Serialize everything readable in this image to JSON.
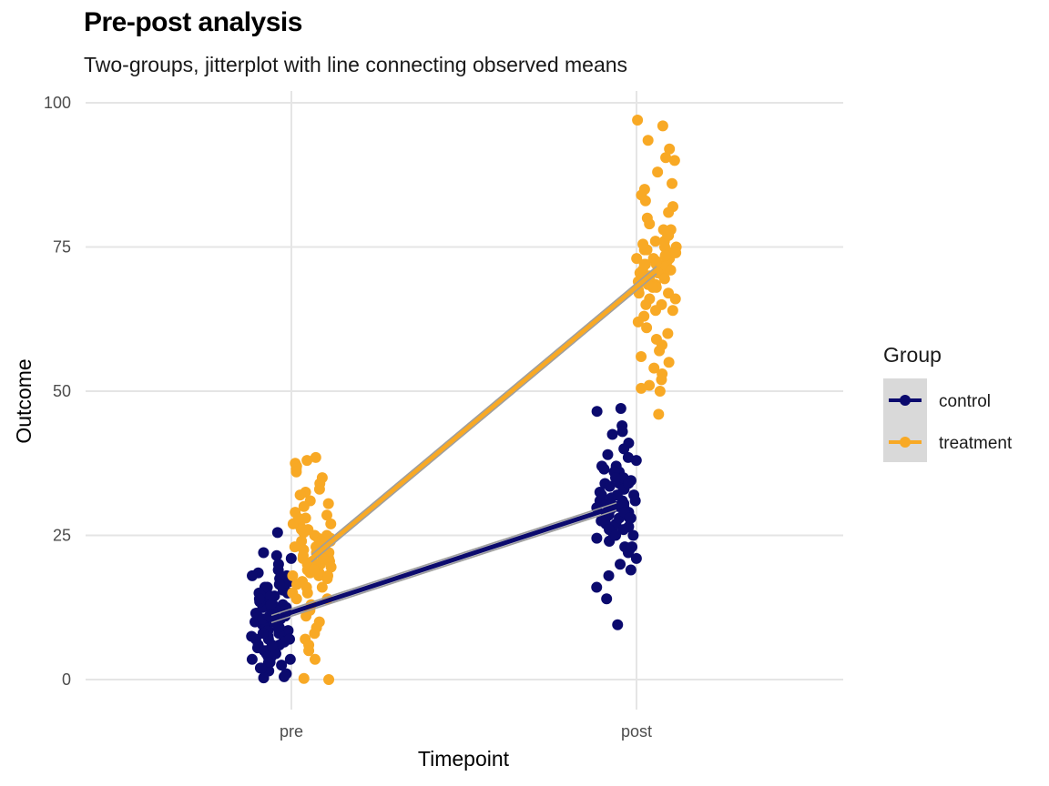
{
  "chart_data": {
    "type": "scatter",
    "title": "Pre-post analysis",
    "subtitle": "Two-groups, jitterplot with line connecting observed means",
    "xlabel": "Timepoint",
    "ylabel": "Outcome",
    "categories": [
      "pre",
      "post"
    ],
    "ylim": [
      0,
      100
    ],
    "yticks": [
      0,
      25,
      50,
      75,
      100
    ],
    "grid": true,
    "legend": {
      "title": "Group",
      "placement": "right"
    },
    "series": [
      {
        "name": "control",
        "color": "#0b0a6e",
        "means": [
          10.5,
          30.0
        ],
        "points": {
          "pre": [
            25.5,
            22,
            21.5,
            21,
            20,
            19,
            18.5,
            18,
            17.5,
            17,
            16.5,
            16,
            15.5,
            15,
            14.5,
            14,
            13.5,
            13,
            12.5,
            12,
            11.5,
            11,
            10.5,
            10,
            9.5,
            9,
            8.5,
            8,
            7.5,
            7,
            6.5,
            6,
            5.5,
            5,
            4.5,
            4,
            3.5,
            3,
            2.5,
            2,
            1.5,
            1,
            0.5,
            0.3,
            13,
            11,
            9,
            7,
            12,
            10,
            8,
            14,
            6,
            15,
            5,
            16,
            4,
            17,
            3,
            18,
            2,
            11.5,
            9.5,
            7.5,
            12.5,
            10.5,
            8.5,
            13.5,
            6.5,
            14.5,
            5.5,
            15.5,
            4.5,
            16.5,
            3.5,
            10,
            11,
            12,
            9,
            8,
            13,
            7,
            14,
            6,
            15
          ],
          "post": [
            47,
            46.5,
            44,
            43,
            42.5,
            41,
            40,
            39,
            38.5,
            38,
            37,
            36.5,
            36,
            35,
            34.5,
            34,
            33,
            32.5,
            32,
            31,
            30.5,
            30,
            29,
            28.5,
            28,
            27,
            26.5,
            26,
            25,
            24.5,
            24,
            23,
            22.5,
            22,
            21,
            20,
            19,
            18,
            16,
            14,
            9.5,
            31,
            29,
            33,
            27,
            35,
            25,
            30,
            32,
            28,
            34,
            26,
            36,
            24,
            30.5,
            29.5,
            31.5,
            28.5,
            33.5,
            27.5,
            30,
            31,
            29,
            32,
            28,
            34,
            26,
            35,
            25,
            37,
            23,
            30.2,
            29.8
          ]
        }
      },
      {
        "name": "treatment",
        "color": "#f8a925",
        "means": [
          21.0,
          71.0
        ],
        "points": {
          "pre": [
            38.5,
            38,
            37.5,
            37,
            36.5,
            36,
            35,
            34,
            33,
            32.5,
            32,
            31,
            30.5,
            30,
            29,
            28.5,
            28,
            27,
            26.5,
            26,
            25,
            24.5,
            24,
            23,
            22.5,
            22,
            21,
            20.5,
            20,
            19,
            18.5,
            18,
            17,
            16.5,
            16,
            15,
            14,
            13,
            12,
            11,
            10,
            9,
            8,
            7,
            6,
            5,
            3.5,
            0.2,
            0,
            21,
            23,
            19,
            25,
            17,
            27,
            15,
            20,
            22,
            24,
            18,
            26,
            16,
            28,
            14,
            21.5,
            20.5,
            22.5,
            19.5,
            23.5,
            18.5,
            24.5,
            17.5,
            25.5,
            21,
            20,
            22,
            19,
            23,
            18,
            24
          ],
          "post": [
            97,
            96,
            93.5,
            92,
            90.5,
            90,
            88,
            86,
            85,
            84,
            83,
            82,
            81,
            80,
            79,
            78,
            77,
            76,
            75,
            74.5,
            74,
            73,
            72.5,
            72,
            71,
            70.5,
            70,
            69,
            68.5,
            68,
            67,
            66,
            65,
            64,
            63,
            62,
            61,
            60,
            59,
            58,
            57,
            56,
            55,
            54,
            53,
            52,
            51,
            50.5,
            50,
            46,
            71,
            73,
            69,
            75,
            67,
            77,
            65,
            72,
            70,
            74,
            68,
            76,
            66,
            78,
            64,
            71.5,
            70.5,
            72.5,
            69.5,
            73.5,
            68.5,
            74.5,
            67.5,
            75.5,
            71,
            72,
            70,
            73,
            69,
            74
          ]
        }
      }
    ]
  }
}
